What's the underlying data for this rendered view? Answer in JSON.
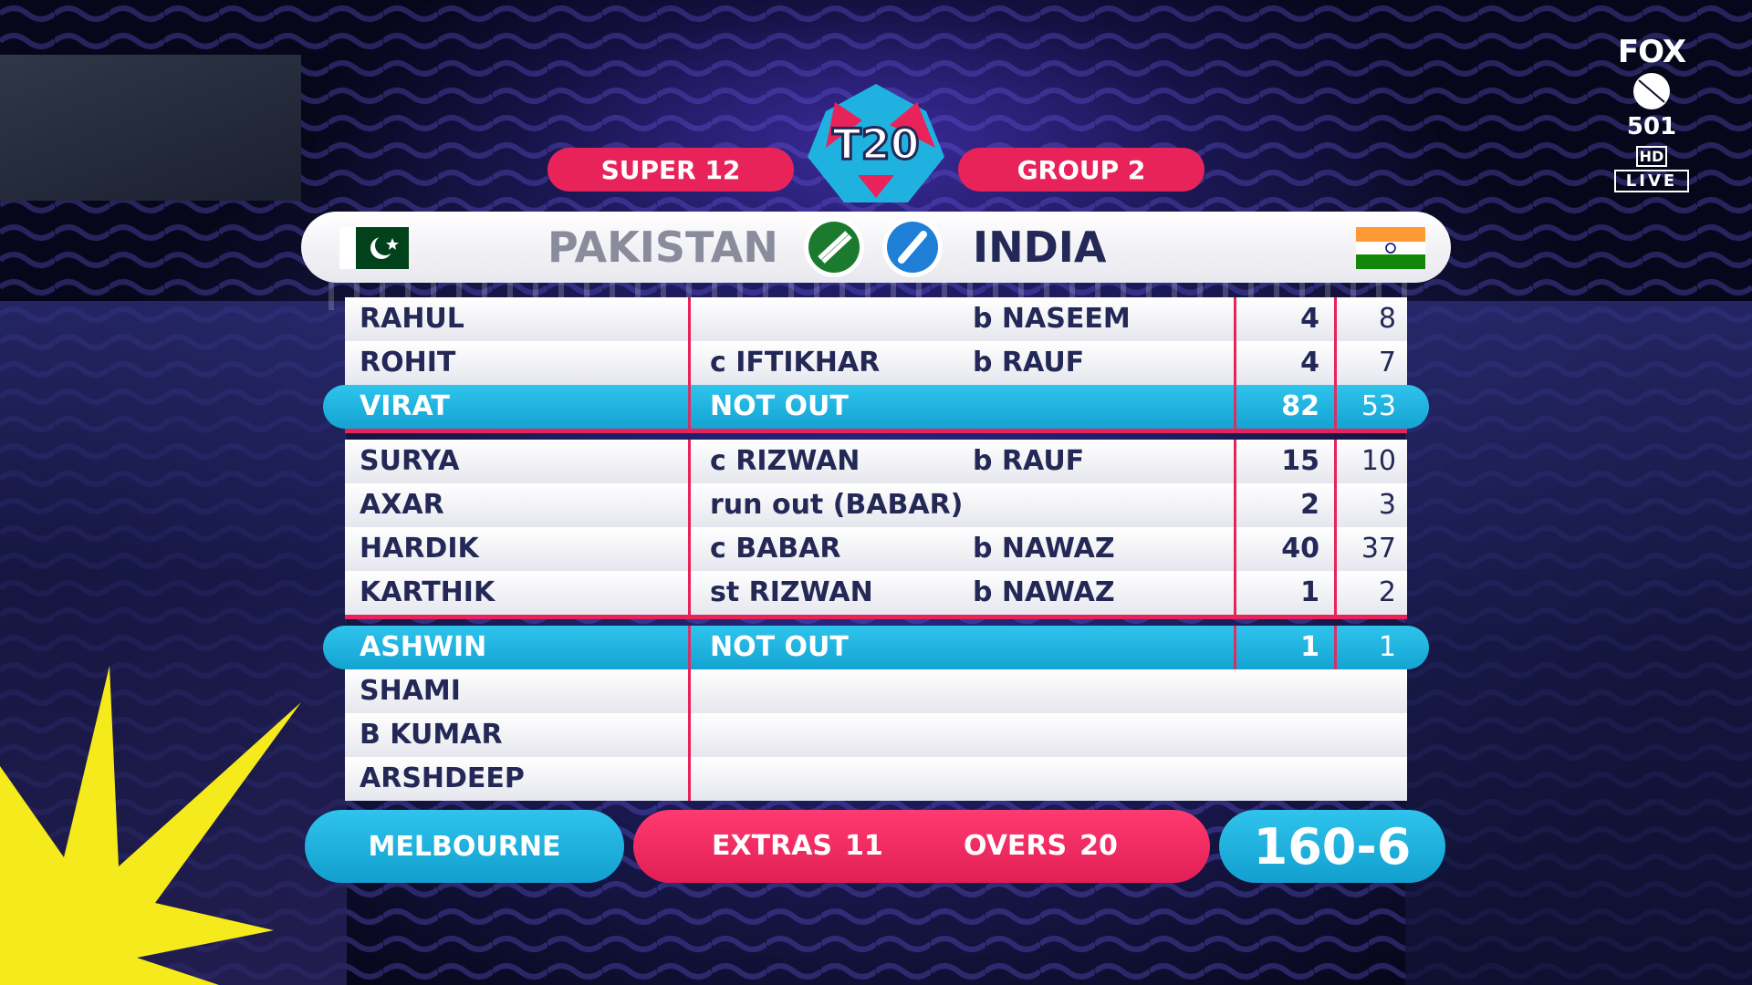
{
  "header": {
    "stage_label": "SUPER 12",
    "group_label": "GROUP 2",
    "logo_text": "T20"
  },
  "teams": {
    "left": {
      "name": "PAKISTAN",
      "flag_color": "#01411C"
    },
    "right": {
      "name": "INDIA",
      "flag_colors": [
        "#FF9933",
        "#FFFFFF",
        "#138808"
      ]
    }
  },
  "scorecard": {
    "rows": [
      {
        "name": "RAHUL",
        "how": "",
        "bowler": "b NASEEM",
        "runs": "4",
        "balls": "8"
      },
      {
        "name": "ROHIT",
        "how": "c IFTIKHAR",
        "bowler": "b RAUF",
        "runs": "4",
        "balls": "7"
      },
      {
        "name": "VIRAT",
        "how": "NOT OUT",
        "bowler": "",
        "runs": "82",
        "balls": "53"
      },
      {
        "name": "SURYA",
        "how": "c RIZWAN",
        "bowler": "b RAUF",
        "runs": "15",
        "balls": "10"
      },
      {
        "name": "AXAR",
        "how": "run out (BABAR)",
        "bowler": "",
        "runs": "2",
        "balls": "3"
      },
      {
        "name": "HARDIK",
        "how": "c BABAR",
        "bowler": "b NAWAZ",
        "runs": "40",
        "balls": "37"
      },
      {
        "name": "KARTHIK",
        "how": "st RIZWAN",
        "bowler": "b NAWAZ",
        "runs": "1",
        "balls": "2"
      },
      {
        "name": "ASHWIN",
        "how": "NOT OUT",
        "bowler": "",
        "runs": "1",
        "balls": "1"
      },
      {
        "name": "SHAMI",
        "how": "",
        "bowler": "",
        "runs": "",
        "balls": ""
      },
      {
        "name": "B KUMAR",
        "how": "",
        "bowler": "",
        "runs": "",
        "balls": ""
      },
      {
        "name": "ARSHDEEP",
        "how": "",
        "bowler": "",
        "runs": "",
        "balls": ""
      }
    ]
  },
  "footer": {
    "venue": "MELBOURNE",
    "extras_label": "EXTRAS",
    "extras_value": "11",
    "overs_label": "OVERS",
    "overs_value": "20",
    "score": "160-6"
  },
  "broadcaster": {
    "name": "FOX",
    "channel": "501",
    "quality": "HD",
    "status": "LIVE"
  },
  "colors": {
    "accent_pink": "#E8235A",
    "accent_blue": "#1FB2E0",
    "text_navy": "#232856"
  }
}
